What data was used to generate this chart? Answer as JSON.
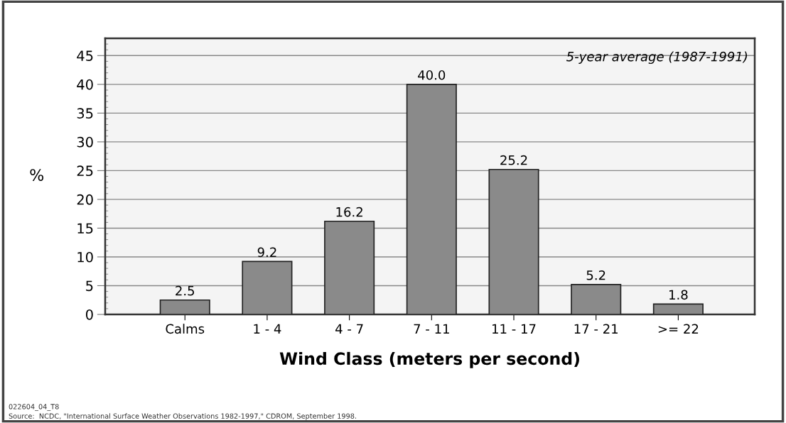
{
  "chart_data": {
    "type": "bar",
    "xlabel": "Wind Class (meters per second)",
    "ylabel": "%",
    "categories": [
      "Calms",
      "1 - 4",
      "4 - 7",
      "7 - 11",
      "11 - 17",
      "17 - 21",
      ">= 22"
    ],
    "values": [
      2.5,
      9.2,
      16.2,
      40.0,
      25.2,
      5.2,
      1.8
    ],
    "value_labels": [
      "2.5",
      "9.2",
      "16.2",
      "40.0",
      "25.2",
      "5.2",
      "1.8"
    ],
    "color": "#8a8a8a",
    "ylim": [
      0,
      48
    ],
    "yticks": [
      0,
      5,
      10,
      15,
      20,
      25,
      30,
      35,
      40,
      45
    ],
    "grid": "y",
    "annotations": [
      "5-year average (1987-1991)",
      "022604_04_T8",
      "Source:  NCDC, \"International Surface Weather Observations 1982-1997,\" CDROM, September 1998."
    ]
  }
}
